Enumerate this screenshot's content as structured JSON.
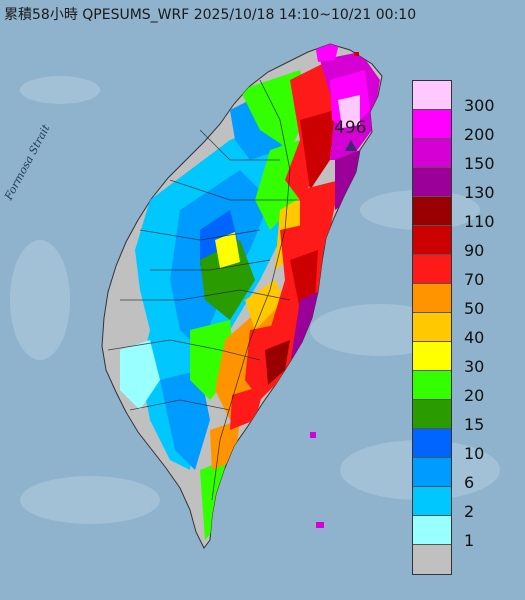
{
  "title": "累積58小時 QPESUMS_WRF 2025/10/18 14:10~10/21 00:10",
  "strait_label": "Formosa Strait",
  "peak_value": "496",
  "legend": [
    {
      "label": "300",
      "color": "#ffc8ff"
    },
    {
      "label": "200",
      "color": "#ff00ff"
    },
    {
      "label": "150",
      "color": "#d400d4"
    },
    {
      "label": "130",
      "color": "#9b0099"
    },
    {
      "label": "110",
      "color": "#990000"
    },
    {
      "label": "90",
      "color": "#cc0000"
    },
    {
      "label": "70",
      "color": "#ff1a1a"
    },
    {
      "label": "50",
      "color": "#ff9400"
    },
    {
      "label": "40",
      "color": "#ffc800"
    },
    {
      "label": "30",
      "color": "#ffff00"
    },
    {
      "label": "20",
      "color": "#33ff00"
    },
    {
      "label": "15",
      "color": "#2a9b00"
    },
    {
      "label": "10",
      "color": "#0064ff"
    },
    {
      "label": "6",
      "color": "#009bff"
    },
    {
      "label": "2",
      "color": "#00c8ff"
    },
    {
      "label": "1",
      "color": "#99ffff"
    },
    {
      "label": "",
      "color": "#c0c0c0"
    }
  ]
}
